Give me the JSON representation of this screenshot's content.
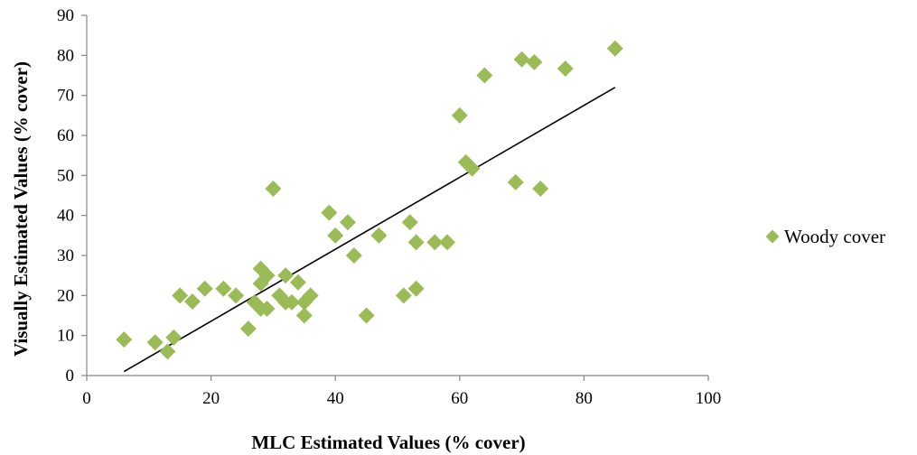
{
  "chart_data": {
    "type": "scatter",
    "title": "",
    "xlabel": "MLC Estimated Values (% cover)",
    "ylabel": "Visually Estimated Values (% cover)",
    "xlim": [
      0,
      100
    ],
    "ylim": [
      0,
      90
    ],
    "xticks": [
      0,
      20,
      40,
      60,
      80,
      100
    ],
    "yticks": [
      0,
      10,
      20,
      30,
      40,
      50,
      60,
      70,
      80,
      90
    ],
    "grid": false,
    "legend_position": "right",
    "series": [
      {
        "name": "Woody cover",
        "color": "#9bbb59",
        "marker": "diamond",
        "points": [
          [
            6,
            9
          ],
          [
            11,
            8.3
          ],
          [
            13,
            6
          ],
          [
            14,
            9.5
          ],
          [
            15,
            20
          ],
          [
            17,
            18.5
          ],
          [
            19,
            21.7
          ],
          [
            22,
            21.7
          ],
          [
            24,
            20
          ],
          [
            26,
            11.7
          ],
          [
            27,
            18.3
          ],
          [
            28,
            16.7
          ],
          [
            28,
            23
          ],
          [
            28,
            26.7
          ],
          [
            29,
            25
          ],
          [
            29,
            16.7
          ],
          [
            30,
            46.7
          ],
          [
            31,
            20
          ],
          [
            32,
            18.3
          ],
          [
            32,
            25
          ],
          [
            33,
            18.3
          ],
          [
            34,
            23.3
          ],
          [
            35,
            15
          ],
          [
            35,
            18.3
          ],
          [
            36,
            20
          ],
          [
            39,
            40.7
          ],
          [
            40,
            35
          ],
          [
            42,
            38.3
          ],
          [
            43,
            30
          ],
          [
            45,
            15
          ],
          [
            47,
            35
          ],
          [
            51,
            20
          ],
          [
            52,
            38.3
          ],
          [
            53,
            33.3
          ],
          [
            53,
            21.7
          ],
          [
            56,
            33.3
          ],
          [
            58,
            33.3
          ],
          [
            60,
            65
          ],
          [
            61,
            53.3
          ],
          [
            62,
            51.7
          ],
          [
            64,
            75
          ],
          [
            69,
            48.3
          ],
          [
            70,
            79
          ],
          [
            72,
            78.3
          ],
          [
            73,
            46.7
          ],
          [
            77,
            76.7
          ],
          [
            85,
            81.7
          ]
        ]
      }
    ],
    "trendline": {
      "type": "linear",
      "x_range": [
        6,
        85
      ],
      "y_at_start": 1,
      "y_at_end": 72
    }
  }
}
